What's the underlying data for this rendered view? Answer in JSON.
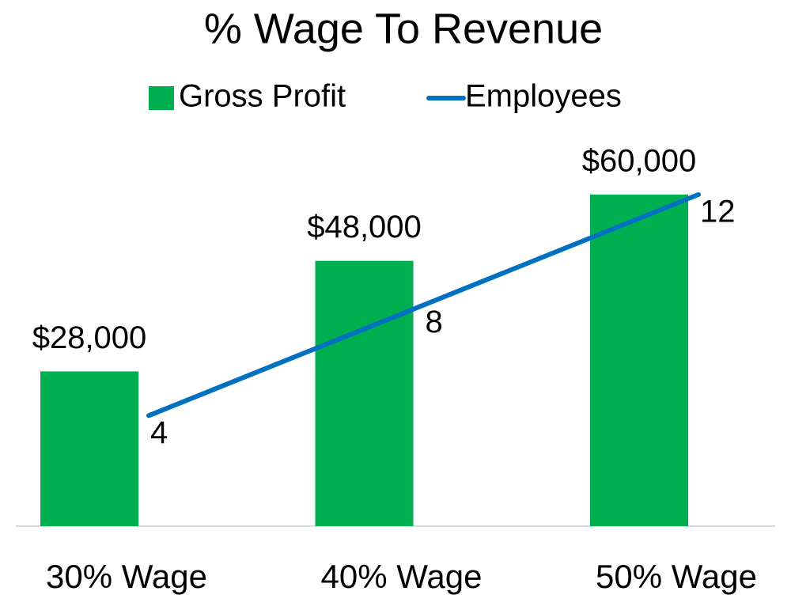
{
  "chart_data": {
    "type": "combo",
    "title": "% Wage To Revenue",
    "categories": [
      "30% Wage",
      "40% Wage",
      "50% Wage"
    ],
    "series": [
      {
        "name": "Gross Profit",
        "type": "bar",
        "color": "#00b050",
        "values": [
          28000,
          48000,
          60000
        ],
        "value_labels": [
          "$28,000",
          "$48,000",
          "$60,000"
        ]
      },
      {
        "name": "Employees",
        "type": "line",
        "axis": "y2",
        "color": "#0070c0",
        "values": [
          4,
          8,
          12
        ]
      }
    ],
    "ylim": [
      0,
      70000
    ],
    "y2lim": [
      0,
      14
    ],
    "legend": "top"
  }
}
